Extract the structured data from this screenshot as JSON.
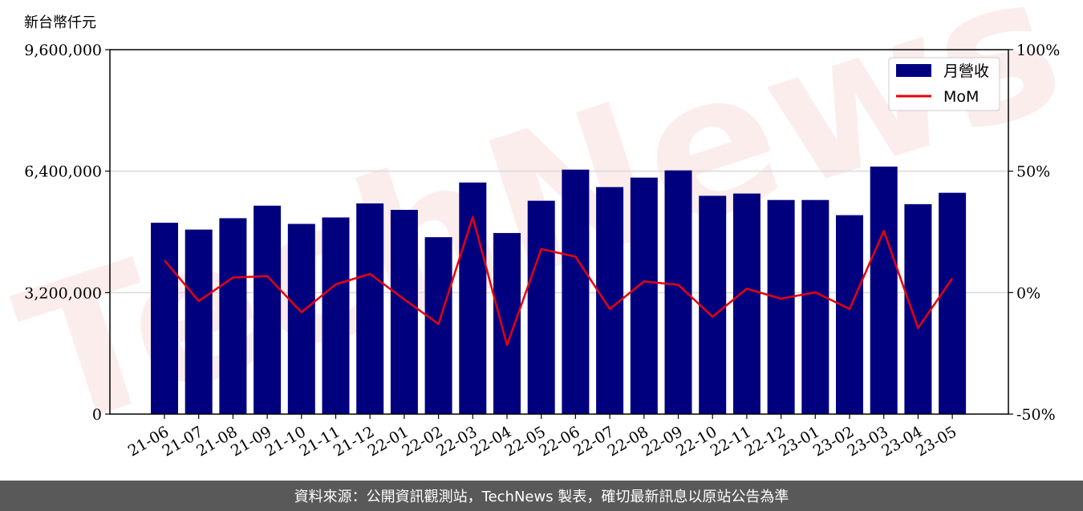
{
  "unit_label": "新台幣仟元",
  "footer_text": "資料來源：公開資訊觀測站，TechNews 製表，確切最新訊息以原站公告為準",
  "watermark_text": "TechNews",
  "colors": {
    "bar": "#00007f",
    "line": "#e8000b",
    "grid": "#d9d9d9",
    "footer_bg": "#595959"
  },
  "chart_data": {
    "type": "bar",
    "categories": [
      "21-06",
      "21-07",
      "21-08",
      "21-09",
      "21-10",
      "21-11",
      "21-12",
      "22-01",
      "22-02",
      "22-03",
      "22-04",
      "22-05",
      "22-06",
      "22-07",
      "22-08",
      "22-09",
      "22-10",
      "22-11",
      "22-12",
      "23-01",
      "23-02",
      "23-03",
      "23-04",
      "23-05"
    ],
    "series": [
      {
        "name": "月營收",
        "type": "bar",
        "axis": "left",
        "values": [
          5040000,
          4860000,
          5160000,
          5490000,
          5010000,
          5180000,
          5550000,
          5380000,
          4660000,
          6100000,
          4770000,
          5620000,
          6440000,
          5980000,
          6230000,
          6420000,
          5750000,
          5810000,
          5640000,
          5640000,
          5240000,
          6520000,
          5530000,
          5830000
        ]
      },
      {
        "name": "MoM",
        "type": "line",
        "axis": "right",
        "values": [
          13.3,
          -3.5,
          6.2,
          6.8,
          -8.1,
          3.4,
          7.7,
          -2.8,
          -12.9,
          31.1,
          -21.6,
          17.9,
          14.8,
          -6.7,
          4.6,
          3.2,
          -9.9,
          1.6,
          -2.5,
          0.1,
          -6.7,
          25.4,
          -14.6,
          5.9
        ]
      }
    ],
    "left_axis": {
      "ylim": [
        0,
        9600000
      ],
      "ticks": [
        "0",
        "3,200,000",
        "6,400,000",
        "9,600,000"
      ],
      "tick_values": [
        0,
        3200000,
        6400000,
        9600000
      ]
    },
    "right_axis": {
      "ylim": [
        -50,
        100
      ],
      "ticks": [
        "-50%",
        "0%",
        "50%",
        "100%"
      ],
      "tick_values": [
        -50,
        0,
        50,
        100
      ]
    },
    "grid": "horizontal",
    "legend_position": "top-right"
  }
}
